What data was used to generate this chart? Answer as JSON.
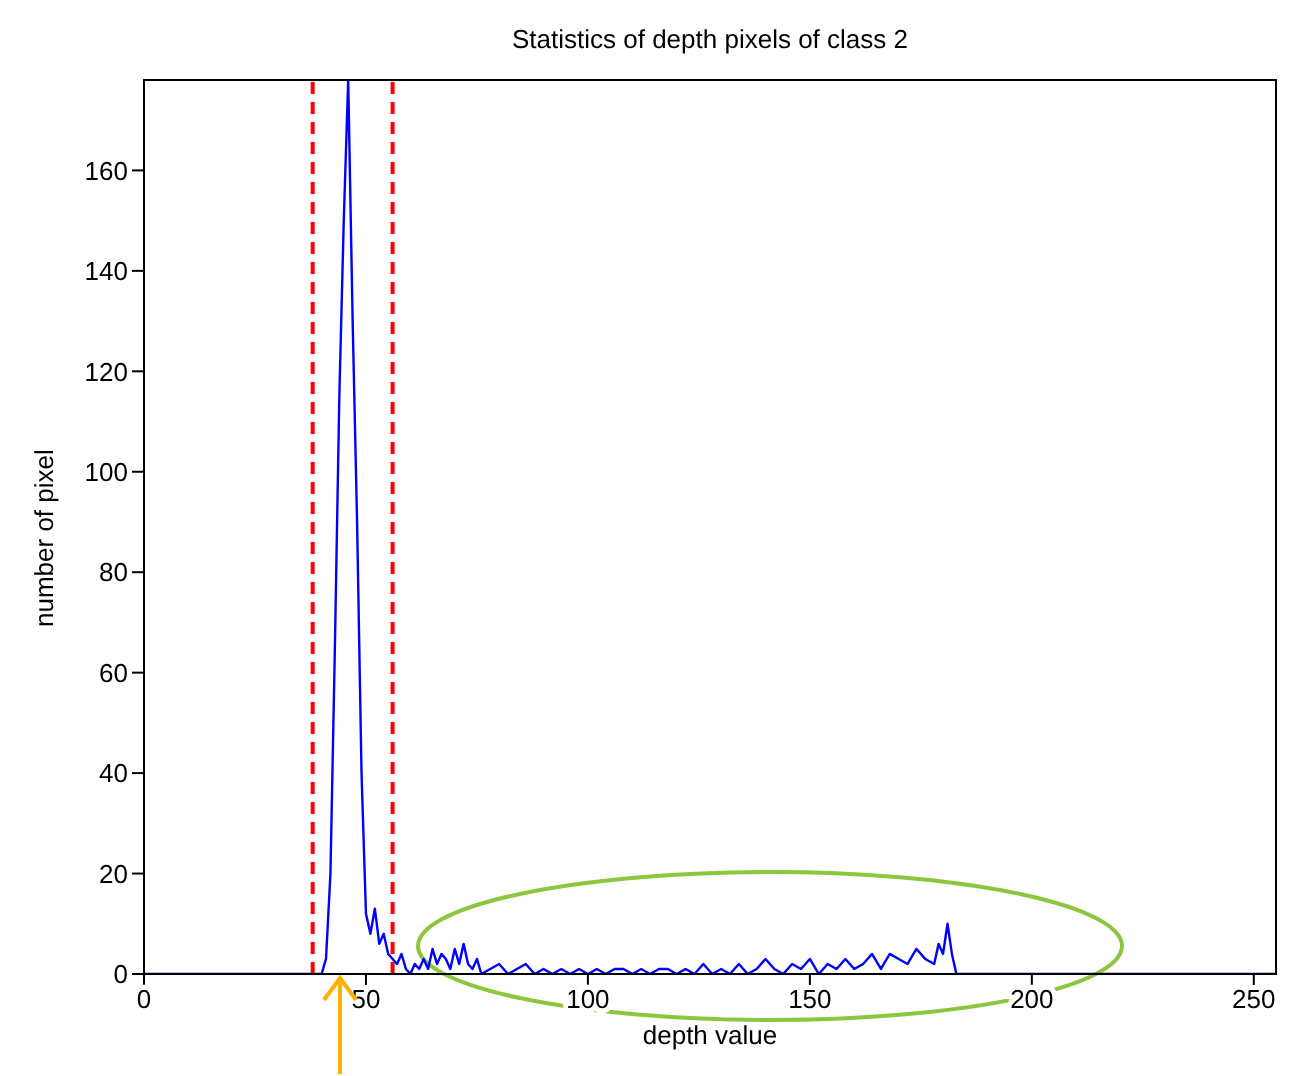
{
  "chart_data": {
    "type": "line",
    "title": "Statistics of depth pixels of class 2",
    "xlabel": "depth value",
    "ylabel": "number of pixel",
    "x": [
      0,
      40,
      41,
      42,
      43,
      44,
      45,
      46,
      47,
      48,
      49,
      50,
      51,
      52,
      53,
      54,
      55,
      56,
      57,
      58,
      59,
      60,
      61,
      62,
      63,
      64,
      65,
      66,
      67,
      68,
      69,
      70,
      71,
      72,
      73,
      74,
      75,
      76,
      78,
      80,
      82,
      84,
      86,
      88,
      90,
      92,
      94,
      96,
      98,
      100,
      102,
      104,
      106,
      108,
      110,
      112,
      114,
      116,
      118,
      120,
      122,
      124,
      126,
      128,
      130,
      132,
      134,
      136,
      138,
      140,
      142,
      144,
      146,
      148,
      150,
      152,
      154,
      156,
      158,
      160,
      162,
      164,
      166,
      168,
      170,
      172,
      174,
      176,
      178,
      179,
      180,
      181,
      182,
      183,
      255
    ],
    "series": [
      {
        "color": "#0000ff",
        "values": [
          0,
          0,
          3,
          20,
          65,
          115,
          150,
          178,
          130,
          90,
          40,
          12,
          8,
          13,
          6,
          8,
          4,
          3,
          2,
          4,
          1,
          0,
          2,
          1,
          3,
          1,
          5,
          2,
          4,
          3,
          1,
          5,
          2,
          6,
          2,
          1,
          3,
          0,
          1,
          2,
          0,
          1,
          2,
          0,
          1,
          0,
          1,
          0,
          1,
          0,
          1,
          0,
          1,
          1,
          0,
          1,
          0,
          1,
          1,
          0,
          1,
          0,
          2,
          0,
          1,
          0,
          2,
          0,
          1,
          3,
          1,
          0,
          2,
          1,
          3,
          0,
          2,
          1,
          3,
          1,
          2,
          4,
          1,
          4,
          3,
          2,
          5,
          3,
          2,
          6,
          4,
          10,
          4,
          0,
          0
        ]
      }
    ],
    "xlim": [
      0,
      255
    ],
    "xticks": [
      0,
      50,
      100,
      150,
      200,
      250
    ],
    "ylim": [
      0,
      178
    ],
    "yticks": [
      0,
      20,
      40,
      60,
      80,
      100,
      120,
      140,
      160
    ],
    "ref_lines": [
      {
        "axis": "x",
        "value": 38,
        "color": "#ff0000",
        "line_style": "dashed"
      },
      {
        "axis": "x",
        "value": 56,
        "color": "#ff0000",
        "line_style": "dashed"
      }
    ],
    "grid": false,
    "line_style": "solid"
  }
}
